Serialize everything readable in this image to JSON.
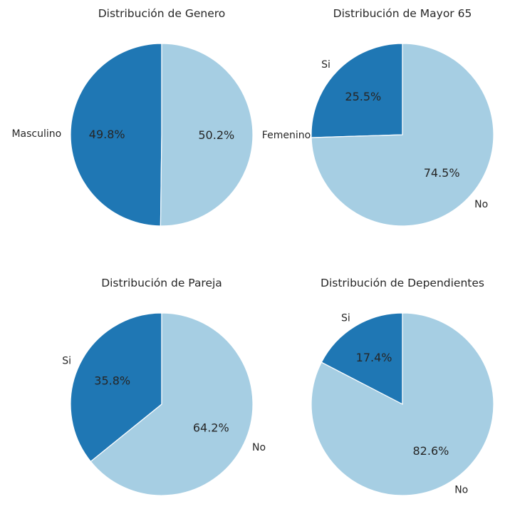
{
  "colors": {
    "primary": "#1f77b4",
    "secondary": "#a6cee3",
    "edge": "#ffffff",
    "text": "#262626",
    "background": "#ffffff"
  },
  "chart_data": [
    {
      "type": "pie",
      "title": "Distribución de Genero",
      "labels": [
        "Masculino",
        "Femenino"
      ],
      "values": [
        49.8,
        50.2
      ],
      "value_labels": [
        "49.8%",
        "50.2%"
      ],
      "colors": [
        "#1f77b4",
        "#a6cee3"
      ],
      "start_angle_deg": 90,
      "direction": "counterclockwise"
    },
    {
      "type": "pie",
      "title": "Distribución de Mayor 65",
      "labels": [
        "Si",
        "No"
      ],
      "values": [
        25.5,
        74.5
      ],
      "value_labels": [
        "25.5%",
        "74.5%"
      ],
      "colors": [
        "#1f77b4",
        "#a6cee3"
      ],
      "start_angle_deg": 90,
      "direction": "counterclockwise"
    },
    {
      "type": "pie",
      "title": "Distribución de Pareja",
      "labels": [
        "Si",
        "No"
      ],
      "values": [
        35.8,
        64.2
      ],
      "value_labels": [
        "35.8%",
        "64.2%"
      ],
      "colors": [
        "#1f77b4",
        "#a6cee3"
      ],
      "start_angle_deg": 90,
      "direction": "counterclockwise"
    },
    {
      "type": "pie",
      "title": "Distribución de Dependientes",
      "labels": [
        "Si",
        "No"
      ],
      "values": [
        17.4,
        82.6
      ],
      "value_labels": [
        "17.4%",
        "82.6%"
      ],
      "colors": [
        "#1f77b4",
        "#a6cee3"
      ],
      "start_angle_deg": 90,
      "direction": "counterclockwise"
    }
  ]
}
